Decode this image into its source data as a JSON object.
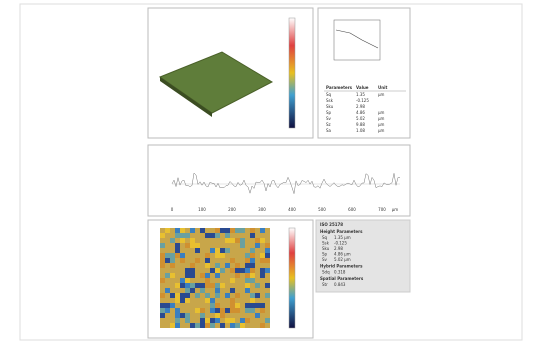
{
  "parameter_table": {
    "header": [
      "Parameters",
      "Value",
      "Unit"
    ],
    "rows": [
      [
        "Sq",
        "1.35",
        "µm"
      ],
      [
        "Ssk",
        "-0.125",
        ""
      ],
      [
        "Sku",
        "2.98",
        ""
      ],
      [
        "Sp",
        "4.86",
        "µm"
      ],
      [
        "Sv",
        "5.02",
        "µm"
      ],
      [
        "Sz",
        "9.88",
        "µm"
      ],
      [
        "Sa",
        "1.08",
        "µm"
      ]
    ]
  },
  "profile": {
    "xticks": [
      "0",
      "100",
      "200",
      "300",
      "400",
      "500",
      "600",
      "700"
    ],
    "unit": "µm"
  },
  "iso_panel": {
    "title": "ISO 25178",
    "sections": [
      {
        "heading": "Height Parameters",
        "rows": [
          [
            "Sq",
            "1.35 µm"
          ],
          [
            "Ssk",
            "-0.125"
          ],
          [
            "Sku",
            "2.98"
          ],
          [
            "Sp",
            "4.86 µm"
          ],
          [
            "Sv",
            "5.02 µm"
          ]
        ]
      },
      {
        "heading": "Hybrid Parameters",
        "rows": [
          [
            "Sdq",
            "0.318"
          ]
        ]
      },
      {
        "heading": "Spatial Parameters",
        "rows": [
          [
            "Str",
            "0.843"
          ]
        ]
      }
    ]
  }
}
